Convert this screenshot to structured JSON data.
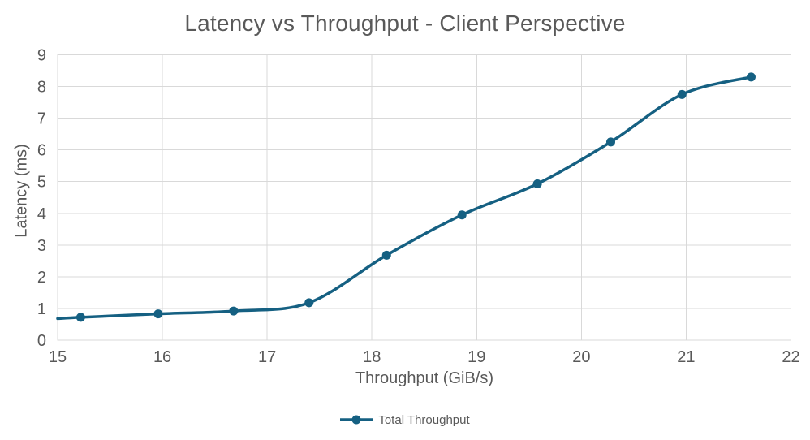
{
  "chart_data": {
    "type": "line",
    "title": "Latency vs Throughput - Client Perspective",
    "xlabel": "Throughput (GiB/s)",
    "ylabel": "Latency (ms)",
    "xlim": [
      15,
      22
    ],
    "ylim": [
      0,
      9
    ],
    "x_ticks": [
      15,
      16,
      17,
      18,
      19,
      20,
      21,
      22
    ],
    "y_ticks": [
      0,
      1,
      2,
      3,
      4,
      5,
      6,
      7,
      8,
      9
    ],
    "grid": true,
    "smooth_lines": true,
    "legend": {
      "label": "Total Throughput",
      "position": "bottom"
    },
    "series": [
      {
        "name": "Total Throughput",
        "color": "#156082",
        "marker": "circle",
        "line_start": {
          "x": 15.0,
          "y": 0.68
        },
        "points": [
          {
            "x": 15.22,
            "y": 0.72
          },
          {
            "x": 15.96,
            "y": 0.83
          },
          {
            "x": 16.68,
            "y": 0.92
          },
          {
            "x": 17.4,
            "y": 1.18
          },
          {
            "x": 18.14,
            "y": 2.68
          },
          {
            "x": 18.86,
            "y": 3.95
          },
          {
            "x": 19.58,
            "y": 4.93
          },
          {
            "x": 20.28,
            "y": 6.25
          },
          {
            "x": 20.96,
            "y": 7.75
          },
          {
            "x": 21.62,
            "y": 8.3
          }
        ]
      }
    ]
  },
  "colors": {
    "series": "#156082",
    "gridline": "#D9D9D9",
    "plot_border": "#D9D9D9",
    "text": "#595959"
  }
}
